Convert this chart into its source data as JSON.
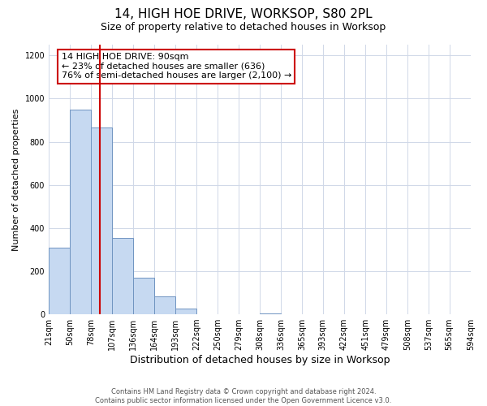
{
  "title": "14, HIGH HOE DRIVE, WORKSOP, S80 2PL",
  "subtitle": "Size of property relative to detached houses in Worksop",
  "xlabel": "Distribution of detached houses by size in Worksop",
  "ylabel": "Number of detached properties",
  "footer_line1": "Contains HM Land Registry data © Crown copyright and database right 2024.",
  "footer_line2": "Contains public sector information licensed under the Open Government Licence v3.0.",
  "bin_edges": [
    21,
    50,
    78,
    107,
    136,
    164,
    193,
    222,
    250,
    279,
    308,
    336,
    365,
    393,
    422,
    451,
    479,
    508,
    537,
    565,
    594
  ],
  "bin_counts": [
    310,
    950,
    865,
    355,
    170,
    85,
    25,
    0,
    0,
    0,
    5,
    0,
    0,
    0,
    0,
    0,
    0,
    0,
    0,
    0
  ],
  "bar_color": "#c6d9f1",
  "bar_edge_color": "#7094c1",
  "property_size": 90,
  "annotation_title": "14 HIGH HOE DRIVE: 90sqm",
  "annotation_line2": "← 23% of detached houses are smaller (636)",
  "annotation_line3": "76% of semi-detached houses are larger (2,100) →",
  "annotation_box_color": "#ffffff",
  "annotation_border_color": "#cc0000",
  "red_line_color": "#cc0000",
  "ylim": [
    0,
    1250
  ],
  "yticks": [
    0,
    200,
    400,
    600,
    800,
    1000,
    1200
  ],
  "tick_labels": [
    "21sqm",
    "50sqm",
    "78sqm",
    "107sqm",
    "136sqm",
    "164sqm",
    "193sqm",
    "222sqm",
    "250sqm",
    "279sqm",
    "308sqm",
    "336sqm",
    "365sqm",
    "393sqm",
    "422sqm",
    "451sqm",
    "479sqm",
    "508sqm",
    "537sqm",
    "565sqm",
    "594sqm"
  ],
  "background_color": "#ffffff",
  "grid_color": "#d0d8e8",
  "title_fontsize": 11,
  "subtitle_fontsize": 9,
  "ylabel_fontsize": 8,
  "xlabel_fontsize": 9,
  "tick_fontsize": 7,
  "annotation_fontsize": 8,
  "footer_fontsize": 6
}
